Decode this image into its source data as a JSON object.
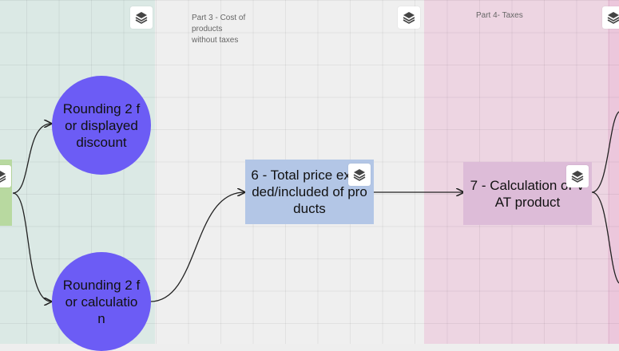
{
  "zones": {
    "part2": {
      "color": "#dbe9e5"
    },
    "part3": {
      "label": "Part 3 - Cost of\nproducts\nwithout taxes",
      "color": "#efefef"
    },
    "part4": {
      "label": "Part 4- Taxes",
      "color": "#edd5e2"
    }
  },
  "nodes": {
    "rounding_displayed": {
      "label": "Rounding 2 for displayed discount",
      "color": "#6c5cf5"
    },
    "rounding_calculation": {
      "label": "Rounding 2 for calculation",
      "color": "#6c5cf5"
    },
    "total_price": {
      "label": "6 - Total price excluded/included of products",
      "color": "#b3c6e6"
    },
    "vat_product": {
      "label": "7 - Calculation of VAT product",
      "color": "#ddbcd8"
    },
    "left_source": {
      "color": "#b8d9a0"
    }
  },
  "icons": {
    "stack": "layers-stack-icon"
  }
}
